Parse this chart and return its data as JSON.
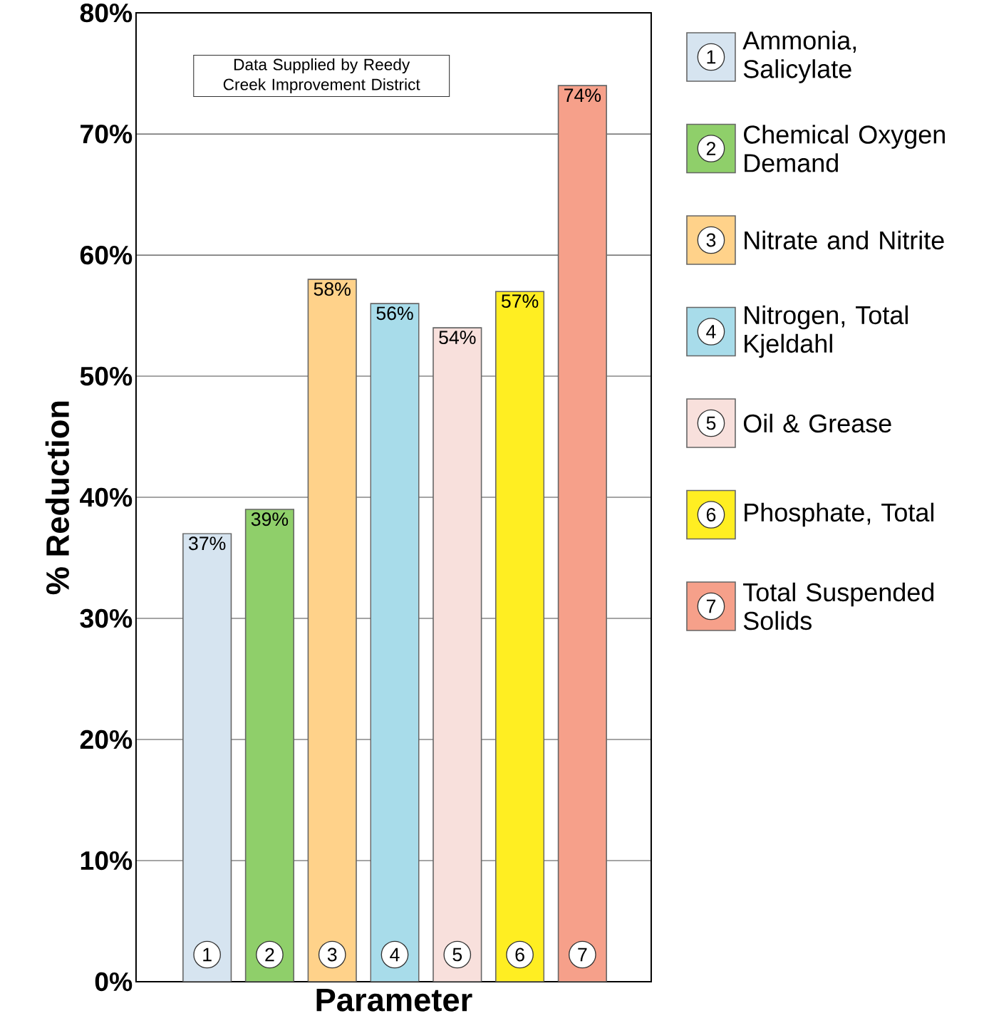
{
  "chart_data": {
    "type": "bar",
    "xlabel": "Parameter",
    "ylabel": "% Reduction",
    "categories": [
      "1",
      "2",
      "3",
      "4",
      "5",
      "6",
      "7"
    ],
    "series": [
      {
        "name": "Ammonia, Salicylate",
        "color": "#d6e4f0",
        "values": [
          37,
          null,
          null,
          null,
          null,
          null,
          null
        ],
        "value_labels": [
          "37%",
          null,
          null,
          null,
          null,
          null,
          null
        ]
      },
      {
        "name": "Chemical Oxygen Demand",
        "color": "#8fcf6a",
        "values": [
          null,
          39,
          null,
          null,
          null,
          null,
          null
        ],
        "value_labels": [
          null,
          "39%",
          null,
          null,
          null,
          null,
          null
        ]
      },
      {
        "name": "Nitrate and Nitrite",
        "color": "#ffd28a",
        "values": [
          null,
          null,
          58,
          null,
          null,
          null,
          null
        ],
        "value_labels": [
          null,
          null,
          "58%",
          null,
          null,
          null,
          null
        ]
      },
      {
        "name": "Nitrogen, Total Kjeldahl",
        "color": "#a8dcea",
        "values": [
          null,
          null,
          null,
          56,
          null,
          null,
          null
        ],
        "value_labels": [
          null,
          null,
          null,
          "56%",
          null,
          null,
          null
        ]
      },
      {
        "name": "Oil & Grease",
        "color": "#f8e0dc",
        "values": [
          null,
          null,
          null,
          null,
          54,
          null,
          null
        ],
        "value_labels": [
          null,
          null,
          null,
          null,
          "54%",
          null,
          null
        ]
      },
      {
        "name": "Phosphate, Total",
        "color": "#ffee22",
        "values": [
          null,
          null,
          null,
          null,
          null,
          57,
          null
        ],
        "value_labels": [
          null,
          null,
          null,
          null,
          null,
          "57%",
          null
        ]
      },
      {
        "name": "Total Suspended Solids",
        "color": "#f6a08a",
        "values": [
          null,
          null,
          null,
          null,
          null,
          null,
          74
        ],
        "value_labels": [
          null,
          null,
          null,
          null,
          null,
          null,
          "74%"
        ]
      }
    ],
    "ylim": [
      0,
      80
    ],
    "yticks": [
      {
        "value": 0,
        "label": "0%"
      },
      {
        "value": 10,
        "label": "10%"
      },
      {
        "value": 20,
        "label": "20%"
      },
      {
        "value": 30,
        "label": "30%"
      },
      {
        "value": 40,
        "label": "40%"
      },
      {
        "value": 50,
        "label": "50%"
      },
      {
        "value": 60,
        "label": "60%"
      },
      {
        "value": 70,
        "label": "70%"
      },
      {
        "value": 80,
        "label": "80%"
      }
    ],
    "grid": "y",
    "legend": "right",
    "annotations": [
      "Data Supplied by Reedy Creek Improvement District"
    ]
  }
}
